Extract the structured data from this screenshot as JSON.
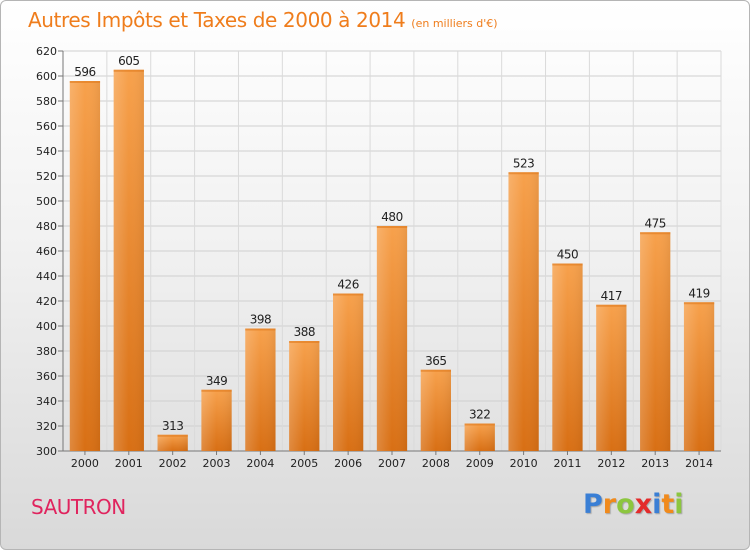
{
  "header": {
    "title": "Autres Impôts et Taxes de 2000 à 2014",
    "subtitle": "(en milliers d'€)"
  },
  "commune": "SAUTRON",
  "logo": {
    "letters": [
      "P",
      "r",
      "o",
      "x",
      "i",
      "t",
      "i"
    ],
    "colors": [
      "#3a7fd5",
      "#f08a1c",
      "#8cc63f",
      "#e42b2b",
      "#3a7fd5",
      "#f08a1c",
      "#8cc63f"
    ]
  },
  "chart_data": {
    "type": "bar",
    "categories": [
      "2000",
      "2001",
      "2002",
      "2003",
      "2004",
      "2005",
      "2006",
      "2007",
      "2008",
      "2009",
      "2010",
      "2011",
      "2012",
      "2013",
      "2014"
    ],
    "values": [
      596,
      605,
      313,
      349,
      398,
      388,
      426,
      480,
      365,
      322,
      523,
      450,
      417,
      475,
      419
    ],
    "ylim": [
      300,
      620
    ],
    "yticks": [
      300,
      320,
      340,
      360,
      380,
      400,
      420,
      440,
      460,
      480,
      500,
      520,
      540,
      560,
      580,
      600,
      620
    ],
    "grid": true,
    "bar_color": "#f0892a",
    "xlabel": "",
    "ylabel": ""
  }
}
